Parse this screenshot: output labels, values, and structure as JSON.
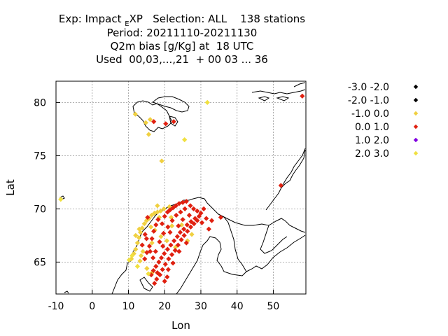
{
  "header": {
    "line1_prefix": "Exp: Impact",
    "line1_sub": "E",
    "line1_rest": "XP   Selection: ALL    138 stations",
    "line2": "Period: 20211110-20211130",
    "line3": "Q2m bias [g/Kg] at  18 UTC",
    "line4": "Used  00,03,...,21  + 00 03 ... 36"
  },
  "chart_data": {
    "type": "scatter",
    "xlabel": "Lon",
    "ylabel": "Lat",
    "xlim": [
      -10,
      59
    ],
    "ylim": [
      62,
      82
    ],
    "xticks": [
      -10,
      0,
      10,
      20,
      30,
      40,
      50
    ],
    "yticks": [
      65,
      70,
      75,
      80
    ],
    "grid": true,
    "legend_position": "right",
    "legend": [
      {
        "label": "-3.0 -2.0",
        "color": "#000000"
      },
      {
        "label": "-2.0 -1.0",
        "color": "#000000"
      },
      {
        "label": "-1.0 0.0",
        "color": "#f0d040"
      },
      {
        "label": "0.0 1.0",
        "color": "#e02010"
      },
      {
        "label": "1.0 2.0",
        "color": "#8000e0"
      },
      {
        "label": "2.0 3.0",
        "color": "#f0e040"
      }
    ],
    "series": [
      {
        "bin": "-1.0 0.0",
        "color": "#f0d040",
        "points": [
          [
            10.8,
            65.3
          ],
          [
            11.5,
            65.8
          ],
          [
            12.0,
            66.2
          ],
          [
            12.5,
            66.8
          ],
          [
            12.9,
            67.3
          ],
          [
            13.3,
            67.8
          ],
          [
            13.8,
            68.2
          ],
          [
            14.4,
            68.6
          ],
          [
            15.0,
            68.9
          ],
          [
            15.7,
            69.1
          ],
          [
            16.4,
            69.4
          ],
          [
            17.2,
            69.6
          ],
          [
            18.0,
            69.7
          ],
          [
            18.9,
            69.8
          ],
          [
            19.8,
            70.0
          ],
          [
            21.3,
            70.2
          ],
          [
            16.2,
            68.3
          ],
          [
            14.0,
            66.0
          ],
          [
            13.2,
            65.1
          ],
          [
            15.1,
            64.4
          ],
          [
            16.5,
            64.0
          ],
          [
            12.0,
            67.5
          ],
          [
            13.0,
            68.1
          ],
          [
            14.8,
            78.1
          ],
          [
            11.9,
            78.9
          ],
          [
            15.6,
            77.0
          ],
          [
            19.2,
            74.5
          ],
          [
            16.0,
            78.4
          ],
          [
            13.5,
            65.6
          ],
          [
            18.5,
            69.2
          ],
          [
            16.5,
            66.8
          ],
          [
            17.3,
            68.0
          ],
          [
            19.0,
            67.4
          ],
          [
            20.6,
            67.0
          ],
          [
            22.0,
            68.4
          ],
          [
            24.7,
            68.5
          ],
          [
            26.3,
            67.0
          ],
          [
            27.5,
            67.6
          ],
          [
            23.0,
            66.4
          ],
          [
            21.8,
            69.2
          ],
          [
            18.0,
            70.3
          ]
        ]
      },
      {
        "bin": "0.0 1.0",
        "color": "#e02010",
        "points": [
          [
            14.5,
            65.3
          ],
          [
            15.1,
            65.9
          ],
          [
            15.8,
            66.5
          ],
          [
            16.5,
            67.2
          ],
          [
            17.0,
            67.9
          ],
          [
            17.6,
            68.5
          ],
          [
            18.2,
            69.0
          ],
          [
            19.3,
            68.6
          ],
          [
            20.0,
            69.3
          ],
          [
            20.8,
            69.7
          ],
          [
            21.5,
            69.9
          ],
          [
            22.3,
            70.1
          ],
          [
            23.1,
            70.3
          ],
          [
            24.0,
            70.5
          ],
          [
            25.0,
            70.6
          ],
          [
            26.0,
            70.7
          ],
          [
            27.1,
            70.3
          ],
          [
            28.0,
            70.0
          ],
          [
            29.0,
            69.8
          ],
          [
            30.0,
            69.6
          ],
          [
            30.8,
            70.0
          ],
          [
            29.5,
            69.3
          ],
          [
            28.4,
            69.1
          ],
          [
            27.3,
            68.8
          ],
          [
            26.2,
            68.5
          ],
          [
            25.3,
            68.1
          ],
          [
            24.3,
            67.8
          ],
          [
            23.5,
            67.4
          ],
          [
            22.6,
            67.0
          ],
          [
            21.7,
            66.6
          ],
          [
            20.8,
            66.2
          ],
          [
            19.9,
            65.8
          ],
          [
            19.1,
            65.4
          ],
          [
            18.4,
            65.0
          ],
          [
            17.6,
            64.6
          ],
          [
            16.9,
            64.2
          ],
          [
            16.3,
            63.8
          ],
          [
            17.8,
            63.4
          ],
          [
            18.7,
            63.8
          ],
          [
            19.4,
            64.3
          ],
          [
            20.2,
            64.8
          ],
          [
            21.1,
            65.3
          ],
          [
            22.0,
            65.7
          ],
          [
            22.9,
            66.1
          ],
          [
            23.7,
            66.6
          ],
          [
            24.6,
            67.1
          ],
          [
            25.4,
            67.5
          ],
          [
            26.3,
            67.9
          ],
          [
            27.2,
            68.3
          ],
          [
            28.1,
            68.6
          ],
          [
            29.0,
            68.9
          ],
          [
            30.3,
            68.7
          ],
          [
            31.5,
            69.1
          ],
          [
            33.0,
            68.9
          ],
          [
            35.5,
            69.2
          ],
          [
            32.2,
            68.1
          ],
          [
            17.5,
            66.0
          ],
          [
            18.6,
            66.9
          ],
          [
            19.7,
            67.7
          ],
          [
            20.9,
            68.3
          ],
          [
            22.1,
            68.9
          ],
          [
            23.2,
            69.4
          ],
          [
            24.4,
            69.7
          ],
          [
            25.6,
            70.0
          ],
          [
            26.8,
            69.4
          ],
          [
            20.0,
            63.2
          ],
          [
            21.0,
            64.3
          ],
          [
            22.3,
            64.9
          ],
          [
            16.0,
            66.0
          ],
          [
            15.0,
            67.2
          ],
          [
            21.5,
            67.8
          ],
          [
            23.8,
            68.4
          ],
          [
            25.0,
            69.0
          ],
          [
            18.0,
            64.0
          ],
          [
            19.5,
            66.5
          ],
          [
            17.2,
            63.0
          ],
          [
            20.7,
            63.6
          ],
          [
            14.6,
            67.6
          ],
          [
            13.8,
            66.6
          ],
          [
            16.8,
            65.4
          ],
          [
            20.3,
            78.0
          ],
          [
            22.5,
            78.2
          ],
          [
            17.0,
            78.2
          ],
          [
            52.1,
            72.2
          ],
          [
            58.0,
            80.6
          ],
          [
            15.3,
            69.2
          ],
          [
            24.0,
            66.0
          ],
          [
            26.0,
            66.8
          ]
        ]
      },
      {
        "bin": "2.0 3.0",
        "color": "#f0e040",
        "points": [
          [
            -8.7,
            70.9
          ],
          [
            31.8,
            80.0
          ],
          [
            25.5,
            76.5
          ],
          [
            11.0,
            65.6
          ],
          [
            12.5,
            64.6
          ],
          [
            10.2,
            65.2
          ],
          [
            15.5,
            63.9
          ]
        ]
      }
    ]
  }
}
